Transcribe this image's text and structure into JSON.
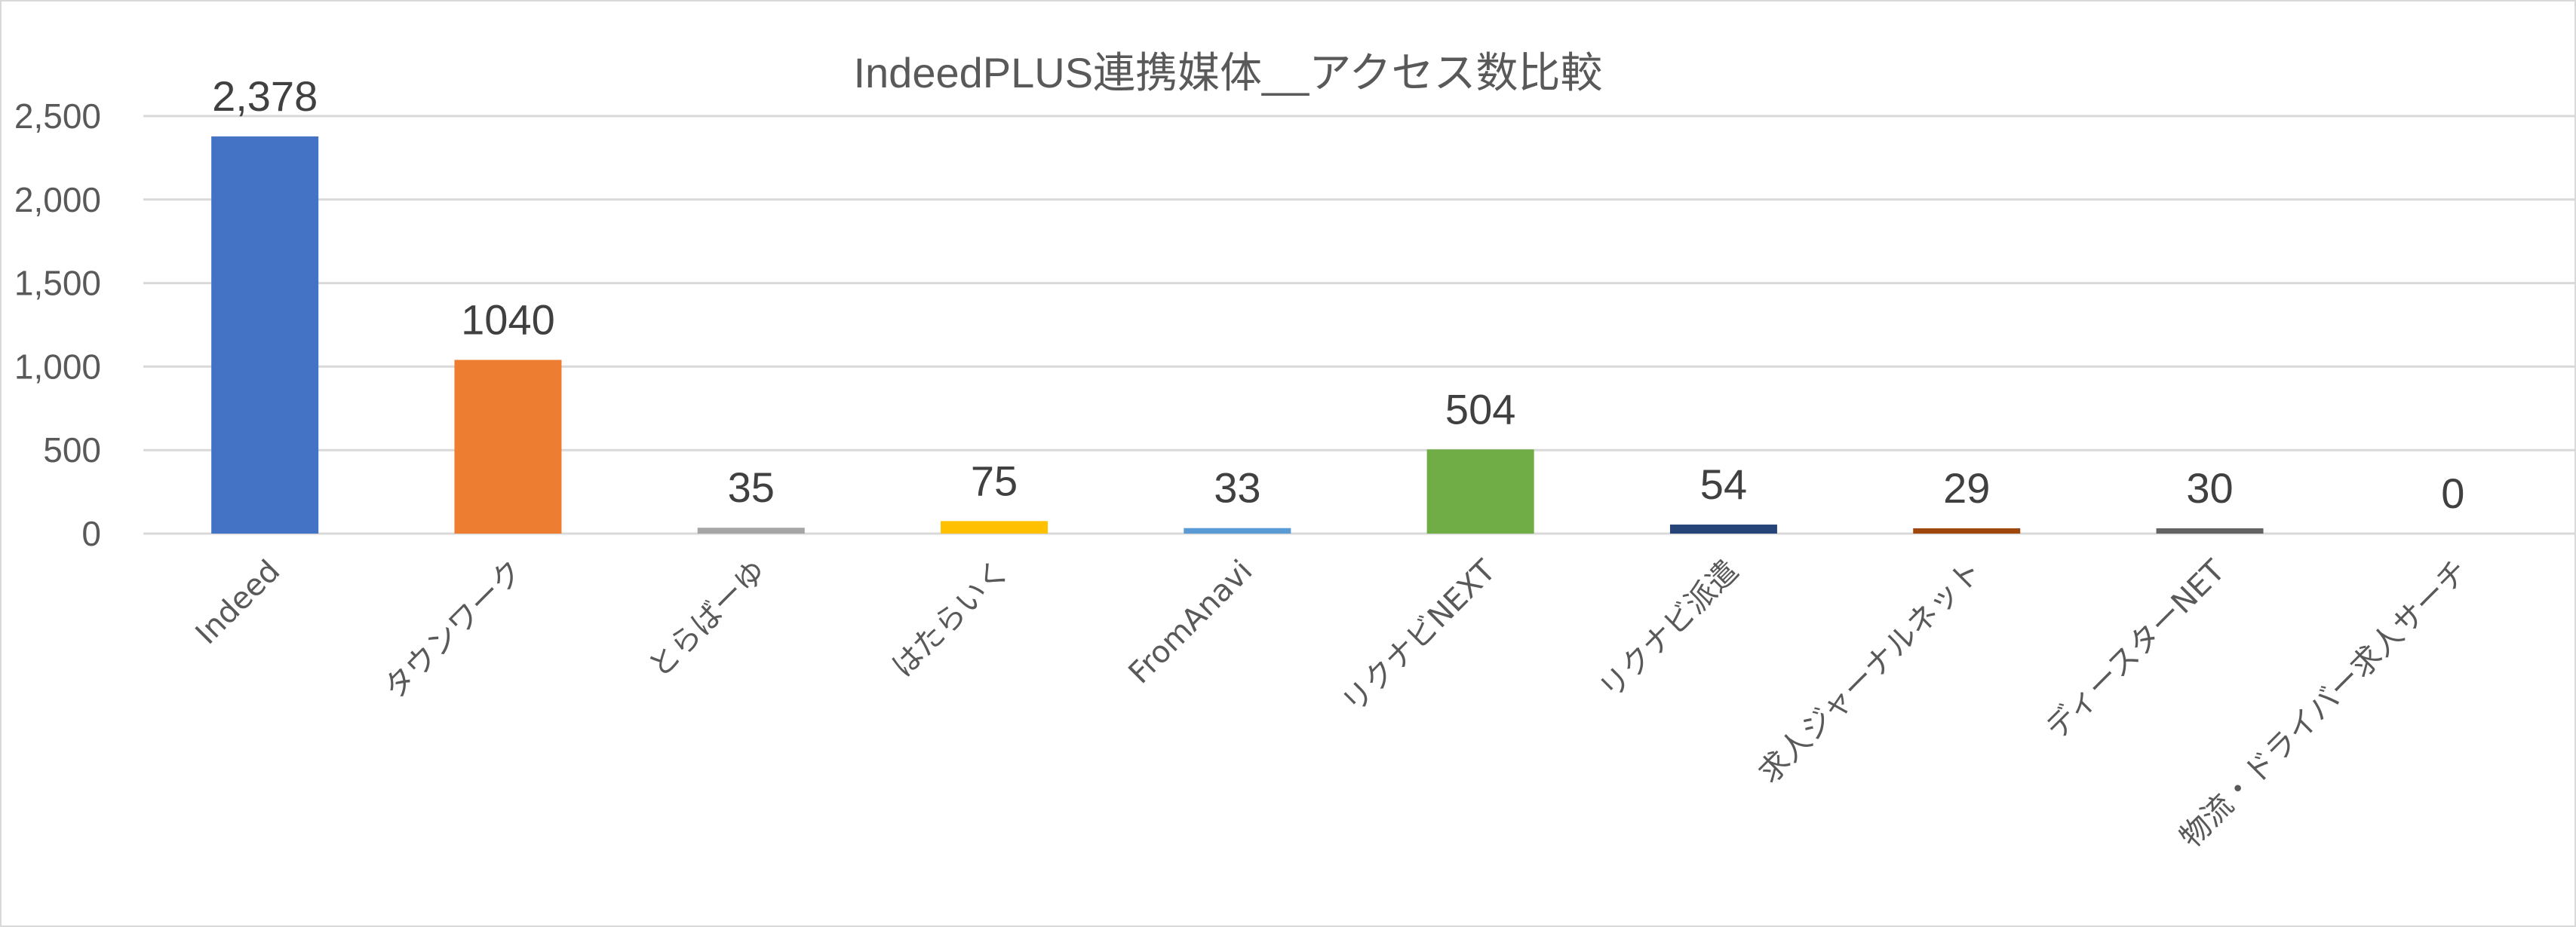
{
  "chart_data": {
    "type": "bar",
    "title": "IndeedPLUS連携媒体__アクセス数比較",
    "xlabel": "",
    "ylabel": "",
    "ylim": [
      0,
      2500
    ],
    "yticks": [
      "0",
      "500",
      "1,000",
      "1,500",
      "2,000",
      "2,500"
    ],
    "ytick_values": [
      0,
      500,
      1000,
      1500,
      2000,
      2500
    ],
    "grid": true,
    "legend": "none",
    "categories": [
      "Indeed",
      "タウンワーク",
      "とらばーゆ",
      "はたらいく",
      "FromAnavi",
      "リクナビNEXT",
      "リクナビ派遣",
      "求人ジャーナルネット",
      "ディースターNET",
      "物流・ドライバー求人サーチ"
    ],
    "values": [
      2378,
      1040,
      35,
      75,
      33,
      504,
      54,
      29,
      30,
      0
    ],
    "data_labels": [
      "2,378",
      "1040",
      "35",
      "75",
      "33",
      "504",
      "54",
      "29",
      "30",
      "0"
    ],
    "colors": [
      "#4472c4",
      "#ed7d31",
      "#a5a5a5",
      "#ffc000",
      "#5b9bd5",
      "#70ad47",
      "#264478",
      "#9e480e",
      "#636363",
      "#997300"
    ]
  }
}
